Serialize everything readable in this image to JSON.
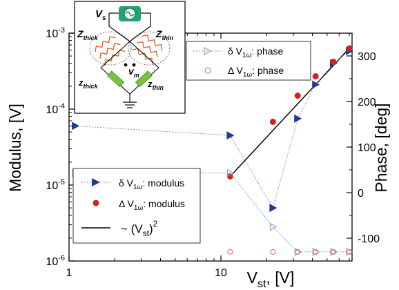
{
  "chart_data": {
    "type": "scatter",
    "xlabel": "V",
    "xlabel_sub": "st",
    "xlabel_unit": ", [V]",
    "ylabel_left": "Modulus, [V]",
    "ylabel_right": "Phase, [deg]",
    "x_scale": "log",
    "y_left_scale": "log",
    "xlim": [
      1,
      73
    ],
    "ylim_left": [
      1e-06,
      0.001
    ],
    "ylim_right": [
      -150,
      350
    ],
    "x_ticks": [
      1,
      10
    ],
    "x_tick_labels": [
      "1",
      "10"
    ],
    "y_left_tick_exponents": [
      -3,
      -4,
      -5,
      -6
    ],
    "y_left_tick_base": "10",
    "y_right_ticks": [
      300,
      200,
      100,
      0,
      -100
    ],
    "y_right_tick_labels": [
      "300",
      "200",
      "100",
      "0",
      "-100"
    ],
    "series": [
      {
        "label": "δ V",
        "label_sub": "1ω",
        "label_suffix": ": modulus",
        "axis": "left",
        "marker": "filled-triangle-right",
        "color": "#1f3a93",
        "line": "dotted",
        "x": [
          1.1,
          11.5,
          22,
          32,
          42,
          55,
          70
        ],
        "y": [
          6e-05,
          4.5e-05,
          5e-06,
          7.5e-05,
          0.00021,
          0.0004,
          0.00058
        ]
      },
      {
        "label": "Δ V",
        "label_sub": "1ω",
        "label_suffix": ": modulus",
        "axis": "left",
        "marker": "filled-circle",
        "color": "#d42020",
        "line": "none",
        "x": [
          11.5,
          22,
          32,
          42,
          55,
          70
        ],
        "y": [
          1.3e-05,
          6.8e-05,
          0.00015,
          0.00027,
          0.00042,
          0.00063
        ]
      },
      {
        "label": "δ V",
        "label_sub": "1ω",
        "label_suffix": ": phase",
        "axis": "right",
        "marker": "open-triangle-right",
        "color": "#7b96cc",
        "line": "dotted",
        "x": [
          1.1,
          11.5,
          22,
          32,
          42,
          55,
          70
        ],
        "y": [
          43,
          43,
          -75,
          -130,
          -130,
          -130,
          -130
        ]
      },
      {
        "label": "Δ V",
        "label_sub": "1ω",
        "label_suffix": ": phase",
        "axis": "right",
        "marker": "open-circle",
        "color": "#e06060",
        "line": "none",
        "x": [
          11.5,
          22,
          32,
          42,
          55,
          70
        ],
        "y": [
          -130,
          -130,
          -130,
          -130,
          -130,
          -130
        ]
      }
    ],
    "fit_line": {
      "label": "~ (V",
      "label_sub": "st",
      "label_suffix": ")",
      "label_sup": "2",
      "axis": "left",
      "x": [
        11.5,
        70
      ],
      "y": [
        1.3e-05,
        0.00063
      ],
      "color": "#000000"
    }
  },
  "inset": {
    "source_label": "V",
    "source_sub": "s",
    "meter_label": "v",
    "meter_sub": "m",
    "z_thick_label": "Z",
    "z_thick_sub": "thick",
    "z_thin_label": "Z",
    "z_thin_sub": "thin",
    "z_thick_label2": "z",
    "z_thin_label2": "z",
    "z_thick_sub2": "thick",
    "z_thin_sub2": "thin"
  }
}
